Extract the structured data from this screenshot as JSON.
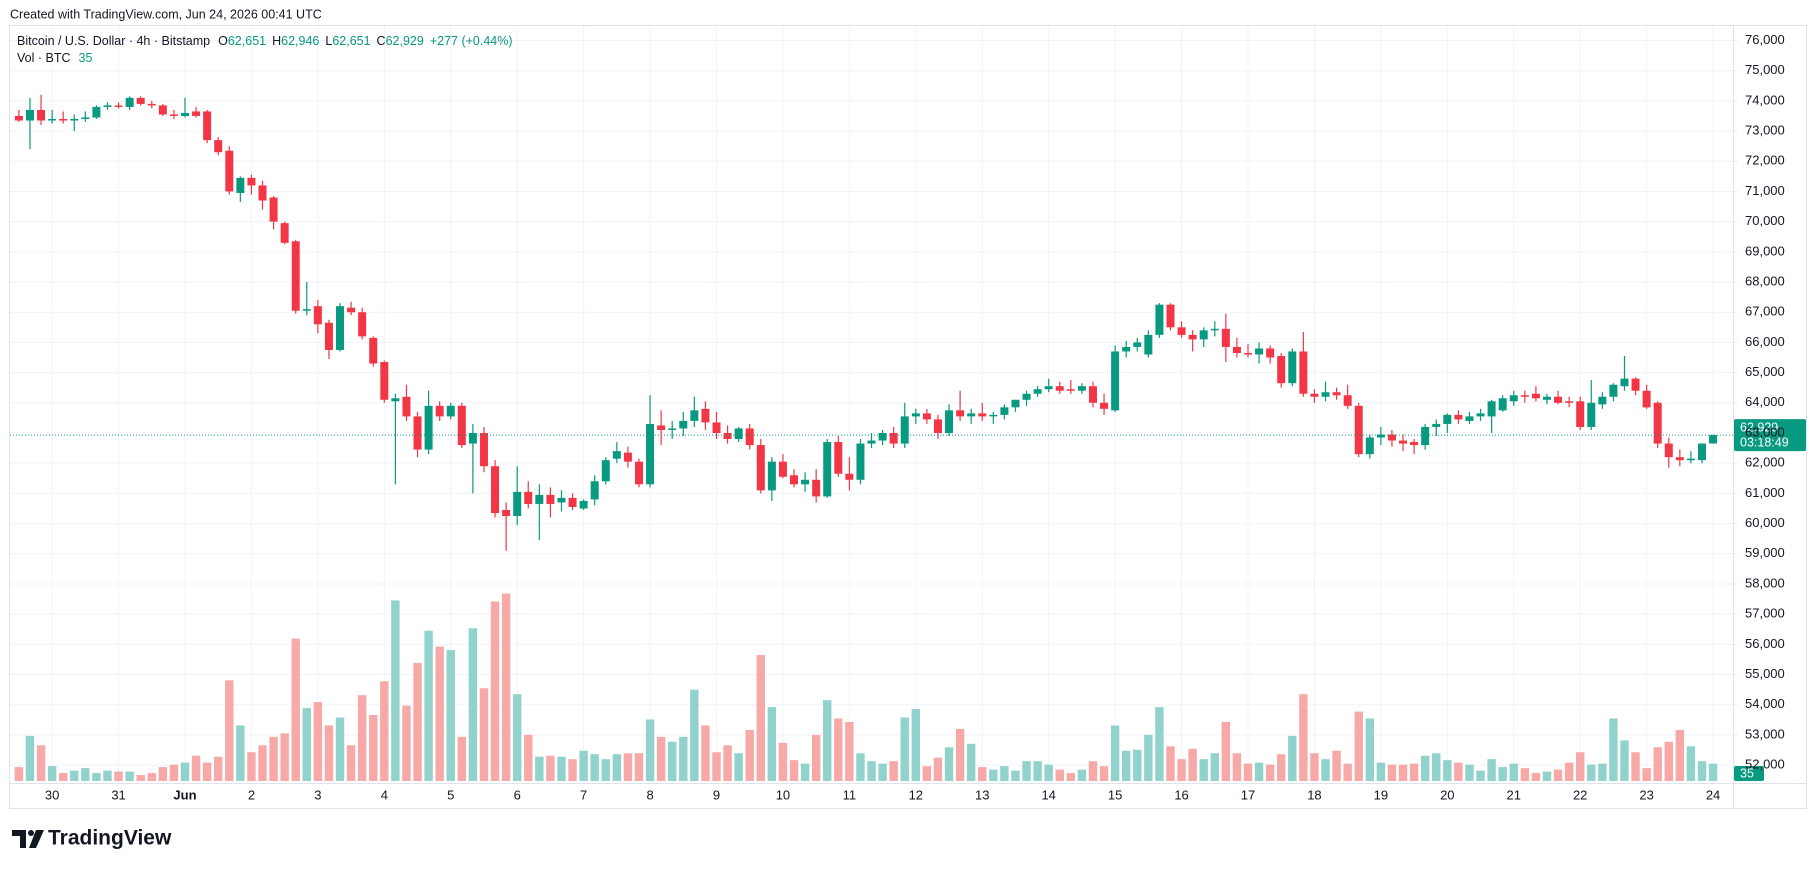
{
  "header": {
    "created": "Created with TradingView.com, Jun 24, 2026 00:41 UTC"
  },
  "footer": {
    "brand": "TradingView"
  },
  "chart_data": {
    "type": "candlestick",
    "symbol": "Bitcoin / U.S. Dollar · 4h · Bitstamp",
    "ohlc_legend": [
      {
        "key": "O",
        "value": "62,651"
      },
      {
        "key": "H",
        "value": "62,946"
      },
      {
        "key": "L",
        "value": "62,651"
      },
      {
        "key": "C",
        "value": "62,929"
      }
    ],
    "change": "+277 (+0.44%)",
    "volume_legend": "Vol · BTC",
    "last_price_label": "62,929",
    "countdown": "03:18:49",
    "up_color": "#089981",
    "down_color": "#f23645",
    "volume_up_color": "#92d2cc",
    "volume_down_color": "#f7a9a7",
    "grid": true,
    "ylim": [
      52000,
      76000
    ],
    "yticks": [
      {
        "value": 52000,
        "label": "52,000"
      },
      {
        "value": 53000,
        "label": "53,000"
      },
      {
        "value": 54000,
        "label": "54,000"
      },
      {
        "value": 55000,
        "label": "55,000"
      },
      {
        "value": 56000,
        "label": "56,000"
      },
      {
        "value": 57000,
        "label": "57,000"
      },
      {
        "value": 58000,
        "label": "58,000"
      },
      {
        "value": 59000,
        "label": "59,000"
      },
      {
        "value": 60000,
        "label": "60,000"
      },
      {
        "value": 61000,
        "label": "61,000"
      },
      {
        "value": 62000,
        "label": "62,000"
      },
      {
        "value": 63000,
        "label": "63,000"
      },
      {
        "value": 64000,
        "label": "64,000"
      },
      {
        "value": 65000,
        "label": "65,000"
      },
      {
        "value": 66000,
        "label": "66,000"
      },
      {
        "value": 67000,
        "label": "67,000"
      },
      {
        "value": 68000,
        "label": "68,000"
      },
      {
        "value": 69000,
        "label": "69,000"
      },
      {
        "value": 70000,
        "label": "70,000"
      },
      {
        "value": 71000,
        "label": "71,000"
      },
      {
        "value": 72000,
        "label": "72,000"
      },
      {
        "value": 73000,
        "label": "73,000"
      },
      {
        "value": 74000,
        "label": "74,000"
      },
      {
        "value": 75000,
        "label": "75,000"
      },
      {
        "value": 76000,
        "label": "76,000"
      }
    ],
    "categories": [
      null,
      null,
      null,
      "30",
      null,
      null,
      null,
      null,
      null,
      "31",
      null,
      null,
      null,
      null,
      null,
      "Jun",
      null,
      null,
      null,
      null,
      null,
      "2",
      null,
      null,
      null,
      null,
      null,
      "3",
      null,
      null,
      null,
      null,
      null,
      "4",
      null,
      null,
      null,
      null,
      null,
      "5",
      null,
      null,
      null,
      null,
      null,
      "6",
      null,
      null,
      null,
      null,
      null,
      "7",
      null,
      null,
      null,
      null,
      null,
      "8",
      null,
      null,
      null,
      null,
      null,
      "9",
      null,
      null,
      null,
      null,
      null,
      "10",
      null,
      null,
      null,
      null,
      null,
      "11",
      null,
      null,
      null,
      null,
      null,
      "12",
      null,
      null,
      null,
      null,
      null,
      "13",
      null,
      null,
      null,
      null,
      null,
      "14",
      null,
      null,
      null,
      null,
      null,
      "15",
      null,
      null,
      null,
      null,
      null,
      "16",
      null,
      null,
      null,
      null,
      null,
      "17",
      null,
      null,
      null,
      null,
      null,
      "18",
      null,
      null,
      null,
      null,
      null,
      "19",
      null,
      null,
      null,
      null,
      null,
      "20",
      null,
      null,
      null,
      null,
      null,
      "21",
      null,
      null,
      null,
      null,
      null,
      "22",
      null,
      null,
      null,
      null,
      null,
      "23",
      null,
      null,
      null,
      null,
      null,
      "24"
    ],
    "open": [
      73500,
      73350,
      73700,
      73350,
      73400,
      73350,
      73400,
      73450,
      73800,
      73850,
      73800,
      74100,
      73900,
      73850,
      73550,
      73500,
      73650,
      73650,
      72700,
      72350,
      70950,
      71450,
      71200,
      70800,
      69950,
      69350,
      67050,
      67200,
      66650,
      65750,
      67150,
      67000,
      66150,
      65350,
      64050,
      64200,
      63550,
      62450,
      63900,
      63550,
      63900,
      62650,
      63000,
      61900,
      60450,
      60250,
      61050,
      60650,
      60950,
      60700,
      60850,
      60500,
      60800,
      61400,
      62150,
      62350,
      62050,
      61300,
      63250,
      63100,
      63150,
      63400,
      63800,
      63350,
      63000,
      62800,
      63150,
      62600,
      61100,
      62050,
      61600,
      61300,
      61450,
      60900,
      62700,
      61650,
      61450,
      62650,
      62750,
      63000,
      62650,
      63550,
      63650,
      63450,
      63000,
      63750,
      63550,
      63650,
      63550,
      63600,
      63850,
      64100,
      64300,
      64450,
      64550,
      64450,
      64400,
      64550,
      64000,
      63750,
      65700,
      65850,
      65600,
      66250,
      67250,
      66500,
      66250,
      66100,
      66400,
      66450,
      65850,
      65650,
      65600,
      65800,
      65550,
      64650,
      65700,
      64300,
      64200,
      64350,
      64250,
      63900,
      62300,
      62850,
      62950,
      62750,
      62700,
      62600,
      63200,
      63300,
      63600,
      63400,
      63550,
      63550,
      63750,
      64050,
      64250,
      64300,
      64100,
      64200,
      64050,
      64050,
      63200,
      63950,
      64200,
      64550,
      64800,
      64400,
      64000,
      62650,
      62200,
      62100,
      62100,
      62651
    ],
    "high": [
      73700,
      74100,
      74200,
      73700,
      73650,
      73550,
      73650,
      73850,
      73950,
      73950,
      74150,
      74150,
      74000,
      73900,
      73700,
      74100,
      73800,
      73700,
      72800,
      72500,
      71500,
      71550,
      71350,
      70850,
      70000,
      69400,
      68000,
      67400,
      66750,
      67300,
      67350,
      67150,
      66200,
      65400,
      64300,
      64600,
      63700,
      64400,
      64050,
      64000,
      64000,
      63300,
      63200,
      62100,
      60700,
      61900,
      61400,
      61300,
      61200,
      61100,
      61000,
      60800,
      61600,
      62200,
      62700,
      62550,
      62150,
      64250,
      63750,
      63400,
      63700,
      64200,
      64050,
      63700,
      63250,
      63200,
      63300,
      62800,
      62200,
      62300,
      61800,
      61700,
      61800,
      62800,
      62900,
      62200,
      62800,
      63000,
      63100,
      63200,
      64000,
      63800,
      63800,
      63600,
      63950,
      64400,
      63800,
      64000,
      63700,
      63950,
      64100,
      64400,
      64550,
      64800,
      64700,
      64750,
      64650,
      64700,
      64300,
      65900,
      66050,
      66150,
      66400,
      67300,
      67300,
      66700,
      66400,
      66500,
      66700,
      66950,
      66150,
      65950,
      66000,
      65900,
      65650,
      65800,
      66350,
      64450,
      64700,
      64500,
      64600,
      64000,
      62950,
      63200,
      63100,
      62950,
      62800,
      63300,
      63450,
      63650,
      63750,
      63700,
      63800,
      64100,
      64250,
      64400,
      64400,
      64550,
      64300,
      64400,
      64200,
      64200,
      64750,
      64350,
      64650,
      65550,
      64850,
      64600,
      64050,
      62850,
      62450,
      62400,
      62600,
      62946
    ],
    "low": [
      73300,
      72400,
      73200,
      73250,
      73250,
      73000,
      73300,
      73400,
      73700,
      73750,
      73700,
      73850,
      73750,
      73500,
      73400,
      73450,
      73450,
      72600,
      72200,
      70900,
      70650,
      70900,
      70400,
      69750,
      69250,
      66950,
      66900,
      66300,
      65450,
      65700,
      66900,
      66100,
      65200,
      64000,
      61300,
      63400,
      62200,
      62300,
      63400,
      63450,
      62500,
      61000,
      61700,
      60200,
      59100,
      59950,
      60500,
      59450,
      60200,
      60400,
      60450,
      60450,
      60600,
      61300,
      62000,
      61850,
      61200,
      61200,
      62600,
      62800,
      62900,
      63200,
      63100,
      62800,
      62650,
      62700,
      62450,
      61000,
      60750,
      61500,
      61200,
      61050,
      60700,
      60850,
      61550,
      61100,
      61300,
      62500,
      62600,
      62500,
      62500,
      63300,
      63300,
      62800,
      62900,
      63400,
      63300,
      63400,
      63300,
      63450,
      63700,
      63900,
      64200,
      64350,
      64300,
      64300,
      64300,
      63850,
      63600,
      63700,
      65500,
      65700,
      65500,
      66150,
      66400,
      66150,
      65700,
      65850,
      66200,
      65350,
      65500,
      65500,
      65300,
      65300,
      64500,
      64550,
      64200,
      64000,
      64050,
      64100,
      63800,
      62200,
      62150,
      62600,
      62550,
      62400,
      62300,
      62450,
      62900,
      63000,
      63300,
      63300,
      63400,
      63000,
      63700,
      63900,
      64000,
      64050,
      63950,
      63950,
      63850,
      63100,
      63100,
      63800,
      64050,
      64400,
      64250,
      63800,
      62500,
      61850,
      61900,
      62000,
      62000,
      62651
    ],
    "close": [
      73350,
      73700,
      73350,
      73400,
      73350,
      73400,
      73450,
      73800,
      73850,
      73800,
      74100,
      73900,
      73850,
      73550,
      73500,
      73600,
      73500,
      72700,
      72300,
      71000,
      71450,
      71200,
      70700,
      70000,
      69300,
      67050,
      67100,
      66600,
      65750,
      67200,
      67000,
      66200,
      65300,
      64100,
      64150,
      63550,
      62450,
      63900,
      63550,
      63900,
      62600,
      63000,
      61900,
      60350,
      60250,
      61050,
      60650,
      60950,
      60650,
      60850,
      60550,
      60750,
      61400,
      62100,
      62400,
      62050,
      61300,
      63300,
      63100,
      63150,
      63400,
      63750,
      63350,
      63000,
      62800,
      63150,
      62600,
      61100,
      62050,
      61550,
      61300,
      61450,
      60900,
      62700,
      61650,
      61450,
      62650,
      62750,
      63000,
      62650,
      63550,
      63650,
      63450,
      63000,
      63750,
      63550,
      63650,
      63550,
      63600,
      63850,
      64100,
      64300,
      64450,
      64550,
      64400,
      64400,
      64550,
      64000,
      63800,
      65700,
      65850,
      66000,
      66250,
      67250,
      66500,
      66250,
      66100,
      66400,
      66450,
      65850,
      65650,
      65600,
      65800,
      65500,
      64650,
      65700,
      64300,
      64200,
      64350,
      64250,
      63900,
      62300,
      62850,
      62950,
      62750,
      62650,
      62600,
      63200,
      63300,
      63600,
      63450,
      63550,
      63650,
      64050,
      64150,
      64250,
      64200,
      64150,
      64200,
      64000,
      64000,
      63200,
      64000,
      64200,
      64600,
      64800,
      64400,
      63850,
      62650,
      62200,
      62100,
      62150,
      62651,
      62929
    ],
    "volume": [
      28,
      91,
      72,
      30,
      16,
      21,
      26,
      16,
      21,
      19,
      19,
      12,
      16,
      28,
      33,
      37,
      51,
      37,
      49,
      203,
      112,
      58,
      72,
      89,
      96,
      287,
      147,
      159,
      112,
      128,
      72,
      173,
      133,
      201,
      364,
      152,
      238,
      303,
      271,
      264,
      89,
      308,
      187,
      362,
      378,
      175,
      93,
      49,
      51,
      49,
      44,
      61,
      54,
      44,
      54,
      56,
      56,
      124,
      89,
      79,
      89,
      184,
      112,
      58,
      72,
      56,
      103,
      254,
      149,
      77,
      42,
      35,
      93,
      163,
      126,
      119,
      56,
      40,
      35,
      40,
      128,
      145,
      30,
      47,
      68,
      105,
      75,
      28,
      23,
      30,
      21,
      40,
      40,
      33,
      23,
      16,
      23,
      40,
      30,
      112,
      61,
      63,
      93,
      149,
      70,
      44,
      65,
      44,
      56,
      119,
      56,
      35,
      37,
      33,
      54,
      91,
      175,
      56,
      44,
      61,
      35,
      140,
      126,
      37,
      33,
      33,
      35,
      51,
      56,
      42,
      37,
      33,
      21,
      44,
      28,
      35,
      26,
      16,
      19,
      23,
      37,
      58,
      33,
      35,
      126,
      82,
      58,
      26,
      68,
      79,
      103,
      70,
      40,
      35
    ]
  }
}
